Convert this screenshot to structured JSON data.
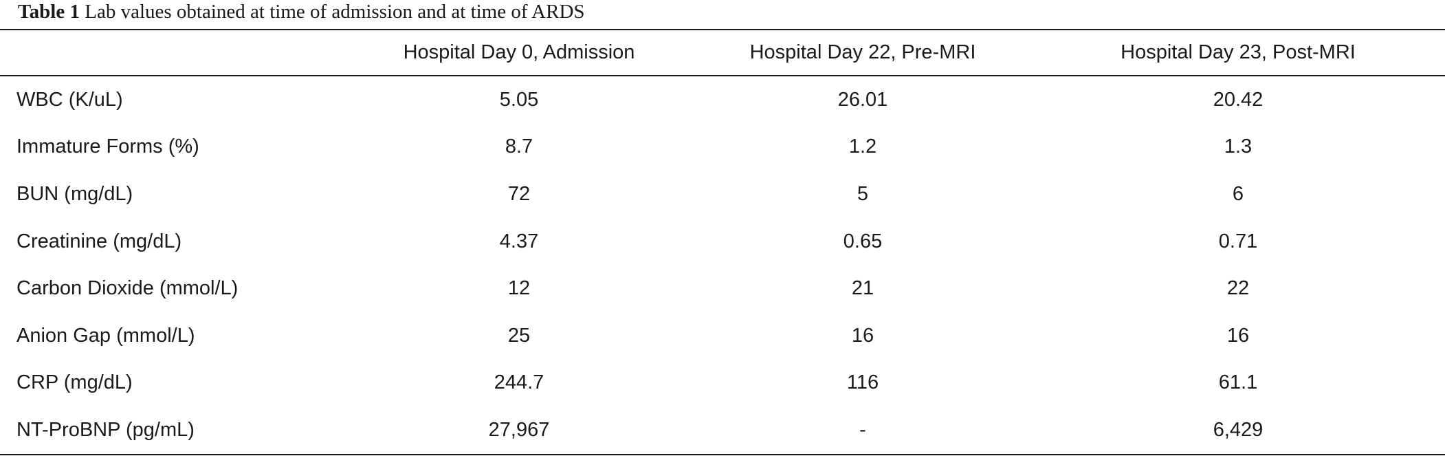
{
  "caption": {
    "label": "Table 1",
    "text": "Lab values obtained at time of admission and at time of ARDS"
  },
  "table": {
    "columns": [
      "",
      "Hospital Day 0, Admission",
      "Hospital Day 22, Pre-MRI",
      "Hospital Day 23, Post-MRI"
    ],
    "rows": [
      {
        "name": "WBC (K/uL)",
        "values": [
          "5.05",
          "26.01",
          "20.42"
        ]
      },
      {
        "name": "Immature Forms (%)",
        "values": [
          "8.7",
          "1.2",
          "1.3"
        ]
      },
      {
        "name": "BUN (mg/dL)",
        "values": [
          "72",
          "5",
          "6"
        ]
      },
      {
        "name": "Creatinine (mg/dL)",
        "values": [
          "4.37",
          "0.65",
          "0.71"
        ]
      },
      {
        "name": "Carbon Dioxide (mmol/L)",
        "values": [
          "12",
          "21",
          "22"
        ]
      },
      {
        "name": "Anion Gap (mmol/L)",
        "values": [
          "25",
          "16",
          "16"
        ]
      },
      {
        "name": "CRP (mg/dL)",
        "values": [
          "244.7",
          "116",
          "61.1"
        ]
      },
      {
        "name": "NT-ProBNP (pg/mL)",
        "values": [
          "27,967",
          "-",
          "6,429"
        ]
      }
    ]
  }
}
